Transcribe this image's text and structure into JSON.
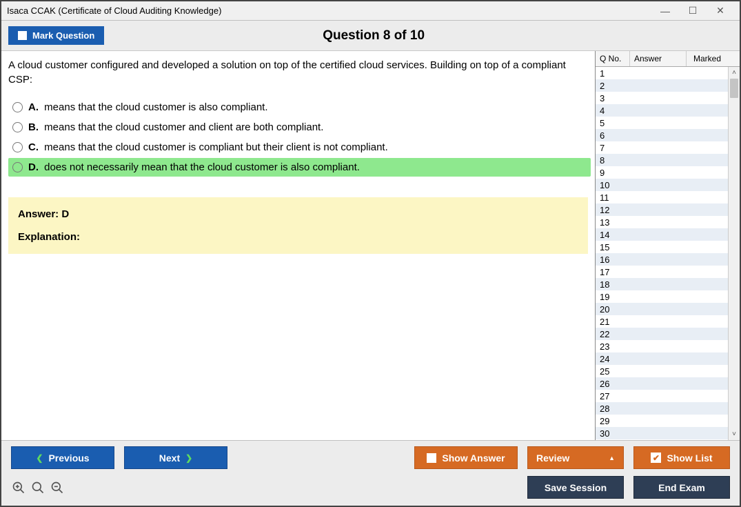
{
  "window": {
    "title": "Isaca CCAK (Certificate of Cloud Auditing Knowledge)"
  },
  "header": {
    "mark_label": "Mark Question",
    "question_header": "Question 8 of 10"
  },
  "question": {
    "text": "A cloud customer configured and developed a solution on top of the certified cloud services. Building on top of a compliant CSP:",
    "choices": [
      {
        "letter": "A.",
        "text": "means that the cloud customer is also compliant.",
        "selected": false
      },
      {
        "letter": "B.",
        "text": "means that the cloud customer and client are both compliant.",
        "selected": false
      },
      {
        "letter": "C.",
        "text": "means that the cloud customer is compliant but their client is not compliant.",
        "selected": false
      },
      {
        "letter": "D.",
        "text": "does not necessarily mean that the cloud customer is also compliant.",
        "selected": true
      }
    ],
    "answer_line": "Answer: D",
    "explanation_label": "Explanation:"
  },
  "sidebar": {
    "col_qno": "Q No.",
    "col_answer": "Answer",
    "col_marked": "Marked",
    "count": 30
  },
  "footer": {
    "previous": "Previous",
    "next": "Next",
    "show_answer": "Show Answer",
    "review": "Review",
    "show_list": "Show List",
    "save_session": "Save Session",
    "end_exam": "End Exam"
  },
  "colors": {
    "blue": "#1a5db0",
    "orange": "#d66a23",
    "navy": "#2e3e55",
    "highlight": "#8ee88e",
    "answerbox": "#fcf6c4"
  }
}
